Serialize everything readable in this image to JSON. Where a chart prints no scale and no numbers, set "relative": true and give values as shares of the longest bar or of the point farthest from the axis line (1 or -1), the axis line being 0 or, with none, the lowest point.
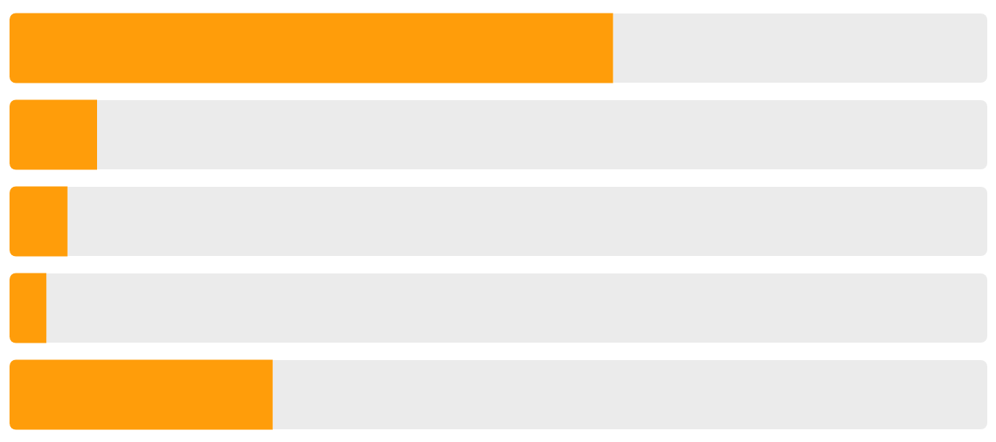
{
  "chart_data": {
    "type": "bar",
    "orientation": "horizontal",
    "relative": true,
    "categories": [
      null,
      null,
      null,
      null,
      null
    ],
    "series": [
      {
        "color": "#ff9d0a",
        "values": [
          1,
          0.145,
          0.096,
          0.061,
          0.436
        ]
      }
    ],
    "legend": false
  }
}
